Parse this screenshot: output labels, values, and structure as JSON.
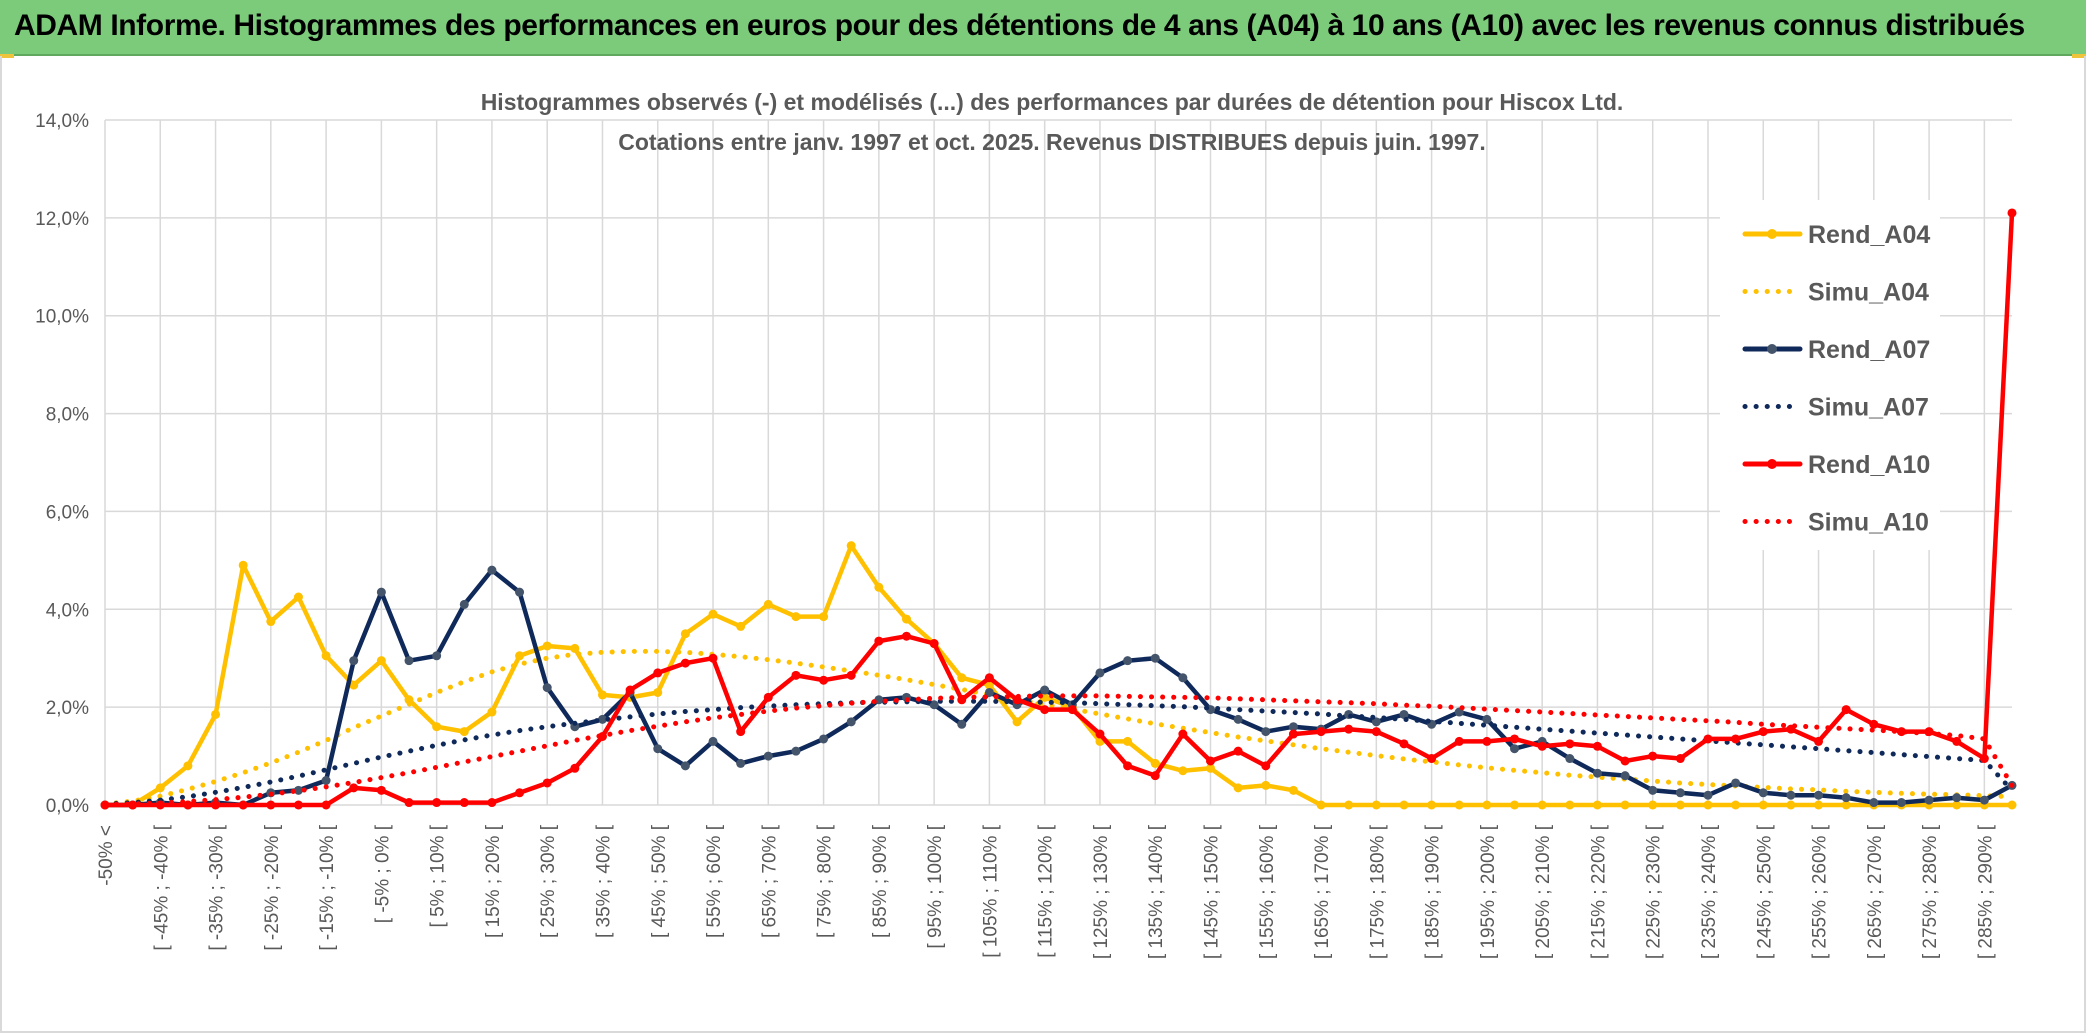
{
  "banner": {
    "title": "ADAM Informe. Histogrammes des performances en euros pour des détentions de 4 ans (A04) à 10 ans (A10) avec les revenus connus distribués",
    "color": "#7ccb7b"
  },
  "chart_data": {
    "type": "line",
    "title_line1": "Histogrammes observés (-) et modélisés (...) des performances par durées de détention pour Hiscox Ltd.",
    "title_line2": "Cotations entre janv. 1997 et oct. 2025. Revenus DISTRIBUES depuis juin. 1997.",
    "ylim": [
      0,
      14
    ],
    "y_ticks": [
      "0,0%",
      "2,0%",
      "4,0%",
      "6,0%",
      "8,0%",
      "10,0%",
      "12,0%",
      "14,0%"
    ],
    "x_labels": [
      "-50% <",
      "[ -45% ; -40% [",
      "[ -35% ; -30% [",
      "[ -25% ; -20% [",
      "[ -15% ; -10% [",
      "[ -5% ; 0% [",
      "[ 5% ; 10% [",
      "[ 15% ; 20% [",
      "[ 25% ; 30% [",
      "[ 35% ; 40% [",
      "[ 45% ; 50% [",
      "[ 55% ; 60% [",
      "[ 65% ; 70% [",
      "[ 75% ; 80% [",
      "[ 85% ; 90% [",
      "[ 95% ; 100% [",
      "[ 105% ; 110% [",
      "[ 115% ; 120% [",
      "[ 125% ; 130% [",
      "[ 135% ; 140% [",
      "[ 145% ; 150% [",
      "[ 155% ; 160% [",
      "[ 165% ; 170% [",
      "[ 175% ; 180% [",
      "[ 185% ; 190% [",
      "[ 195% ; 200% [",
      "[ 205% ; 210% [",
      "[ 215% ; 220% [",
      "[ 225% ; 230% [",
      "[ 235% ; 240% [",
      "[ 245% ; 250% [",
      "[ 255% ; 260% [",
      "[ 265% ; 270% [",
      "[ 275% ; 280% [",
      "[ 285% ; 290% ["
    ],
    "n_points": 70,
    "legend_position": "right",
    "series": [
      {
        "name": "Rend_A04",
        "style": "solid",
        "color": "#ffc000",
        "values": [
          0.0,
          0.0,
          0.35,
          0.8,
          1.85,
          4.9,
          3.75,
          4.25,
          3.05,
          2.45,
          2.95,
          2.15,
          1.6,
          1.5,
          1.9,
          3.05,
          3.25,
          3.2,
          2.25,
          2.2,
          2.3,
          3.5,
          3.9,
          3.65,
          4.1,
          3.85,
          3.85,
          5.3,
          4.45,
          3.8,
          3.3,
          2.6,
          2.45,
          1.7,
          2.2,
          2.0,
          1.3,
          1.3,
          0.85,
          0.7,
          0.75,
          0.35,
          0.4,
          0.3,
          0.0,
          0.0,
          0.0,
          0.0,
          0.0,
          0.0,
          0.0,
          0.0,
          0.0,
          0.0,
          0.0,
          0.0,
          0.0,
          0.0,
          0.0,
          0.0,
          0.0,
          0.0,
          0.0,
          0.0,
          0.0,
          0.0,
          0.0,
          0.0,
          0.0,
          0.0
        ]
      },
      {
        "name": "Simu_A04",
        "style": "dotted",
        "color": "#ffc000",
        "values": [
          0.02,
          0.08,
          0.18,
          0.32,
          0.48,
          0.66,
          0.86,
          1.08,
          1.32,
          1.58,
          1.82,
          2.06,
          2.3,
          2.52,
          2.72,
          2.88,
          3.0,
          3.08,
          3.12,
          3.14,
          3.14,
          3.12,
          3.08,
          3.03,
          2.97,
          2.9,
          2.82,
          2.74,
          2.65,
          2.56,
          2.46,
          2.36,
          2.26,
          2.16,
          2.06,
          1.96,
          1.86,
          1.76,
          1.66,
          1.57,
          1.48,
          1.39,
          1.31,
          1.23,
          1.15,
          1.08,
          1.01,
          0.94,
          0.88,
          0.82,
          0.76,
          0.71,
          0.66,
          0.61,
          0.57,
          0.53,
          0.49,
          0.45,
          0.42,
          0.39,
          0.36,
          0.33,
          0.31,
          0.28,
          0.26,
          0.24,
          0.22,
          0.21,
          0.19,
          0.17
        ]
      },
      {
        "name": "Rend_A07",
        "style": "solid",
        "color": "#0f2a5a",
        "values": [
          0.0,
          0.0,
          0.05,
          0.0,
          0.05,
          0.0,
          0.25,
          0.3,
          0.5,
          2.95,
          4.35,
          2.95,
          3.05,
          4.1,
          4.8,
          4.35,
          2.4,
          1.6,
          1.75,
          2.3,
          1.15,
          0.8,
          1.3,
          0.85,
          1.0,
          1.1,
          1.35,
          1.7,
          2.15,
          2.2,
          2.05,
          1.65,
          2.3,
          2.05,
          2.35,
          2.05,
          2.7,
          2.95,
          3.0,
          2.6,
          1.95,
          1.75,
          1.5,
          1.6,
          1.55,
          1.85,
          1.7,
          1.85,
          1.65,
          1.9,
          1.75,
          1.15,
          1.3,
          0.95,
          0.65,
          0.6,
          0.3,
          0.25,
          0.2,
          0.45,
          0.25,
          0.2,
          0.2,
          0.15,
          0.05,
          0.05,
          0.1,
          0.15,
          0.1,
          0.4
        ]
      },
      {
        "name": "Simu_A07",
        "style": "dotted",
        "color": "#0f2a5a",
        "values": [
          0.02,
          0.05,
          0.1,
          0.17,
          0.26,
          0.36,
          0.47,
          0.59,
          0.72,
          0.85,
          0.98,
          1.1,
          1.22,
          1.33,
          1.43,
          1.52,
          1.6,
          1.67,
          1.74,
          1.8,
          1.86,
          1.91,
          1.95,
          1.99,
          2.02,
          2.05,
          2.07,
          2.09,
          2.1,
          2.11,
          2.12,
          2.12,
          2.12,
          2.11,
          2.1,
          2.09,
          2.07,
          2.05,
          2.03,
          2.01,
          1.98,
          1.95,
          1.92,
          1.89,
          1.86,
          1.82,
          1.79,
          1.75,
          1.71,
          1.67,
          1.63,
          1.59,
          1.55,
          1.51,
          1.47,
          1.43,
          1.39,
          1.35,
          1.31,
          1.27,
          1.23,
          1.19,
          1.15,
          1.11,
          1.07,
          1.03,
          0.99,
          0.95,
          0.91,
          0.3
        ]
      },
      {
        "name": "Rend_A10",
        "style": "solid",
        "color": "#ff0000",
        "values": [
          0.0,
          0.0,
          0.0,
          0.0,
          0.0,
          0.0,
          0.0,
          0.0,
          0.0,
          0.35,
          0.3,
          0.05,
          0.05,
          0.05,
          0.05,
          0.25,
          0.45,
          0.75,
          1.4,
          2.35,
          2.7,
          2.9,
          3.0,
          1.5,
          2.2,
          2.65,
          2.55,
          2.65,
          3.35,
          3.45,
          3.3,
          2.15,
          2.6,
          2.15,
          1.95,
          1.95,
          1.45,
          0.8,
          0.6,
          1.45,
          0.9,
          1.1,
          0.8,
          1.45,
          1.5,
          1.55,
          1.5,
          1.25,
          0.95,
          1.3,
          1.3,
          1.35,
          1.2,
          1.25,
          1.2,
          0.9,
          1.0,
          0.95,
          1.35,
          1.35,
          1.5,
          1.55,
          1.3,
          1.95,
          1.65,
          1.5,
          1.5,
          1.3,
          0.95,
          12.1
        ]
      },
      {
        "name": "Simu_A10",
        "style": "dotted",
        "color": "#ff0000",
        "values": [
          0.01,
          0.02,
          0.04,
          0.07,
          0.11,
          0.16,
          0.22,
          0.29,
          0.37,
          0.46,
          0.56,
          0.66,
          0.77,
          0.88,
          0.99,
          1.1,
          1.21,
          1.32,
          1.42,
          1.52,
          1.61,
          1.7,
          1.78,
          1.85,
          1.92,
          1.98,
          2.03,
          2.08,
          2.12,
          2.15,
          2.18,
          2.2,
          2.21,
          2.22,
          2.23,
          2.23,
          2.23,
          2.22,
          2.21,
          2.2,
          2.19,
          2.17,
          2.15,
          2.13,
          2.11,
          2.09,
          2.07,
          2.04,
          2.02,
          1.99,
          1.96,
          1.93,
          1.9,
          1.87,
          1.84,
          1.81,
          1.78,
          1.75,
          1.72,
          1.69,
          1.65,
          1.62,
          1.59,
          1.56,
          1.53,
          1.5,
          1.46,
          1.42,
          1.35,
          0.4
        ]
      }
    ]
  }
}
